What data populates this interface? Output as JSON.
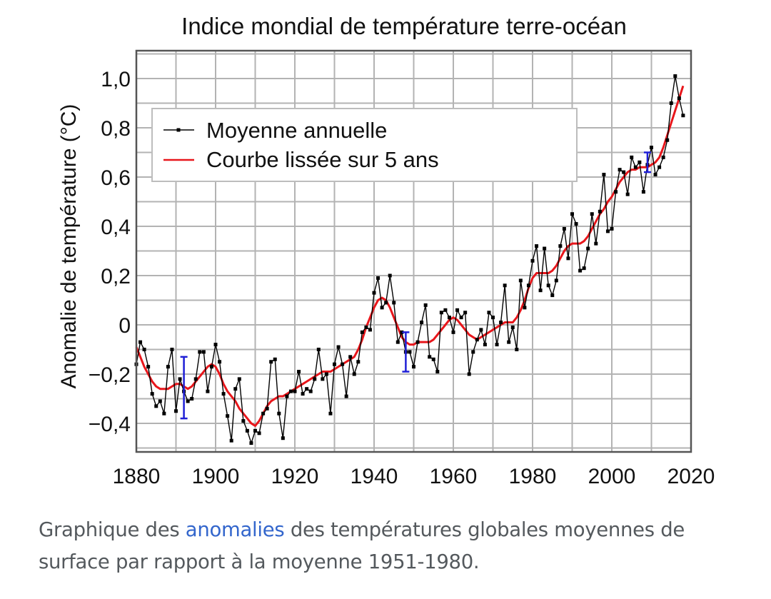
{
  "chart_data": {
    "type": "line",
    "title": "Indice mondial de température terre-océan",
    "xlabel": "",
    "ylabel": "Anomalie de température (°C)",
    "xlim": [
      1880,
      2020
    ],
    "ylim": [
      -0.5,
      1.1
    ],
    "x_ticks": [
      1880,
      1900,
      1920,
      1940,
      1960,
      1980,
      2000,
      2020
    ],
    "x_tick_labels": [
      "1880",
      "1900",
      "1920",
      "1940",
      "1960",
      "1980",
      "2000",
      "2020"
    ],
    "y_ticks": [
      1.0,
      0.8,
      0.6,
      0.4,
      0.2,
      0,
      -0.2,
      -0.4
    ],
    "y_tick_labels": [
      "1,0",
      "0,8",
      "0,6",
      "0,4",
      "0,2",
      "0",
      "−0,2",
      "−0,4"
    ],
    "grid": true,
    "legend_position": "top-left",
    "x": [
      1880,
      1881,
      1882,
      1883,
      1884,
      1885,
      1886,
      1887,
      1888,
      1889,
      1890,
      1891,
      1892,
      1893,
      1894,
      1895,
      1896,
      1897,
      1898,
      1899,
      1900,
      1901,
      1902,
      1903,
      1904,
      1905,
      1906,
      1907,
      1908,
      1909,
      1910,
      1911,
      1912,
      1913,
      1914,
      1915,
      1916,
      1917,
      1918,
      1919,
      1920,
      1921,
      1922,
      1923,
      1924,
      1925,
      1926,
      1927,
      1928,
      1929,
      1930,
      1931,
      1932,
      1933,
      1934,
      1935,
      1936,
      1937,
      1938,
      1939,
      1940,
      1941,
      1942,
      1943,
      1944,
      1945,
      1946,
      1947,
      1948,
      1949,
      1950,
      1951,
      1952,
      1953,
      1954,
      1955,
      1956,
      1957,
      1958,
      1959,
      1960,
      1961,
      1962,
      1963,
      1964,
      1965,
      1966,
      1967,
      1968,
      1969,
      1970,
      1971,
      1972,
      1973,
      1974,
      1975,
      1976,
      1977,
      1978,
      1979,
      1980,
      1981,
      1982,
      1983,
      1984,
      1985,
      1986,
      1987,
      1988,
      1989,
      1990,
      1991,
      1992,
      1993,
      1994,
      1995,
      1996,
      1997,
      1998,
      1999,
      2000,
      2001,
      2002,
      2003,
      2004,
      2005,
      2006,
      2007,
      2008,
      2009,
      2010,
      2011,
      2012,
      2013,
      2014,
      2015,
      2016,
      2017,
      2018
    ],
    "series": [
      {
        "name": "Moyenne annuelle",
        "color": "#000000",
        "marker": "square",
        "values": [
          -0.16,
          -0.07,
          -0.1,
          -0.17,
          -0.28,
          -0.33,
          -0.31,
          -0.36,
          -0.17,
          -0.1,
          -0.35,
          -0.22,
          -0.27,
          -0.31,
          -0.3,
          -0.22,
          -0.11,
          -0.11,
          -0.27,
          -0.17,
          -0.08,
          -0.15,
          -0.28,
          -0.37,
          -0.47,
          -0.26,
          -0.22,
          -0.39,
          -0.43,
          -0.48,
          -0.43,
          -0.44,
          -0.36,
          -0.34,
          -0.15,
          -0.14,
          -0.36,
          -0.46,
          -0.29,
          -0.27,
          -0.27,
          -0.19,
          -0.28,
          -0.26,
          -0.27,
          -0.22,
          -0.1,
          -0.22,
          -0.2,
          -0.36,
          -0.16,
          -0.09,
          -0.16,
          -0.29,
          -0.13,
          -0.2,
          -0.15,
          -0.03,
          -0.01,
          -0.02,
          0.13,
          0.19,
          0.07,
          0.09,
          0.2,
          0.09,
          -0.07,
          -0.03,
          -0.11,
          -0.11,
          -0.17,
          -0.07,
          0.01,
          0.08,
          -0.13,
          -0.14,
          -0.19,
          0.05,
          0.06,
          0.03,
          -0.03,
          0.06,
          0.03,
          0.05,
          -0.2,
          -0.11,
          -0.06,
          -0.02,
          -0.08,
          0.05,
          0.03,
          -0.08,
          0.01,
          0.16,
          -0.07,
          -0.01,
          -0.1,
          0.18,
          0.07,
          0.16,
          0.26,
          0.32,
          0.14,
          0.31,
          0.16,
          0.12,
          0.18,
          0.32,
          0.39,
          0.27,
          0.45,
          0.41,
          0.22,
          0.23,
          0.31,
          0.45,
          0.33,
          0.46,
          0.61,
          0.38,
          0.39,
          0.54,
          0.63,
          0.62,
          0.53,
          0.68,
          0.64,
          0.66,
          0.54,
          0.65,
          0.72,
          0.61,
          0.64,
          0.68,
          0.75,
          0.9,
          1.01,
          0.92,
          0.85
        ]
      },
      {
        "name": "Courbe lissée sur 5 ans",
        "color": "#e8161b",
        "values": [
          -0.09,
          -0.13,
          -0.17,
          -0.2,
          -0.23,
          -0.25,
          -0.26,
          -0.26,
          -0.26,
          -0.25,
          -0.24,
          -0.24,
          -0.25,
          -0.26,
          -0.25,
          -0.23,
          -0.21,
          -0.19,
          -0.17,
          -0.16,
          -0.17,
          -0.2,
          -0.24,
          -0.27,
          -0.29,
          -0.31,
          -0.34,
          -0.36,
          -0.38,
          -0.4,
          -0.41,
          -0.39,
          -0.36,
          -0.33,
          -0.31,
          -0.3,
          -0.29,
          -0.29,
          -0.28,
          -0.27,
          -0.26,
          -0.25,
          -0.24,
          -0.23,
          -0.22,
          -0.21,
          -0.2,
          -0.19,
          -0.19,
          -0.19,
          -0.18,
          -0.17,
          -0.16,
          -0.15,
          -0.14,
          -0.13,
          -0.1,
          -0.06,
          -0.01,
          0.03,
          0.07,
          0.1,
          0.11,
          0.1,
          0.07,
          0.03,
          -0.01,
          -0.05,
          -0.07,
          -0.08,
          -0.08,
          -0.07,
          -0.07,
          -0.07,
          -0.07,
          -0.06,
          -0.04,
          -0.02,
          0.0,
          0.02,
          0.03,
          0.02,
          0.0,
          -0.02,
          -0.04,
          -0.05,
          -0.06,
          -0.05,
          -0.04,
          -0.03,
          -0.02,
          -0.01,
          0.0,
          0.01,
          0.01,
          0.01,
          0.03,
          0.06,
          0.1,
          0.15,
          0.19,
          0.21,
          0.21,
          0.21,
          0.21,
          0.22,
          0.24,
          0.27,
          0.3,
          0.32,
          0.33,
          0.33,
          0.33,
          0.34,
          0.36,
          0.39,
          0.42,
          0.45,
          0.47,
          0.5,
          0.52,
          0.55,
          0.58,
          0.6,
          0.62,
          0.63,
          0.63,
          0.64,
          0.64,
          0.64,
          0.65,
          0.66,
          0.68,
          0.72,
          0.77,
          0.82,
          0.87,
          0.92,
          0.97
        ]
      }
    ],
    "error_bars": [
      {
        "x": 1892,
        "low": -0.38,
        "high": -0.13,
        "color": "#1f1fd6"
      },
      {
        "x": 1948,
        "low": -0.19,
        "high": -0.03,
        "color": "#1f1fd6"
      },
      {
        "x": 2009,
        "low": 0.62,
        "high": 0.7,
        "color": "#1f1fd6"
      }
    ],
    "legend": [
      {
        "label": "Moyenne annuelle",
        "style": "black-line-marker"
      },
      {
        "label": "Courbe lissée sur 5 ans",
        "style": "red-line"
      }
    ]
  },
  "caption": {
    "before": "Graphique des ",
    "link": "anomalies",
    "after": " des températures globales moyennes de surface par rapport à la moyenne 1951-1980."
  }
}
